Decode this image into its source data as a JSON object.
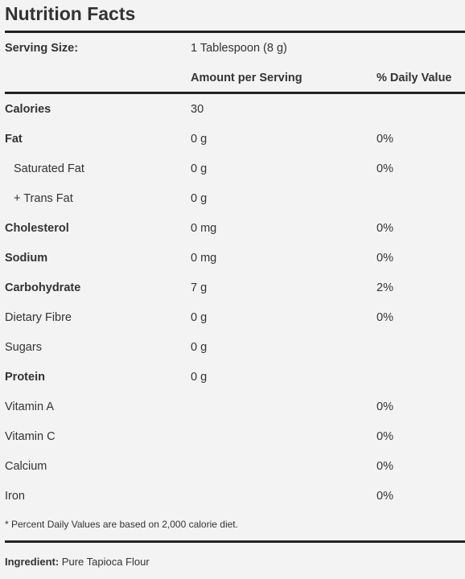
{
  "title": "Nutrition Facts",
  "serving": {
    "label": "Serving Size:",
    "value": "1 Tablespoon (8 g)"
  },
  "columns": {
    "amount": "Amount per Serving",
    "daily_value": "% Daily Value"
  },
  "rows": [
    {
      "name": "Calories",
      "amount": "30",
      "dv": "",
      "bold": true,
      "indent": false
    },
    {
      "name": "Fat",
      "amount": "0 g",
      "dv": "0%",
      "bold": true,
      "indent": false
    },
    {
      "name": "Saturated Fat",
      "amount": "0 g",
      "dv": "0%",
      "bold": false,
      "indent": true
    },
    {
      "name": "+ Trans Fat",
      "amount": "0 g",
      "dv": "",
      "bold": false,
      "indent": true
    },
    {
      "name": "Cholesterol",
      "amount": "0 mg",
      "dv": "0%",
      "bold": true,
      "indent": false
    },
    {
      "name": "Sodium",
      "amount": "0 mg",
      "dv": "0%",
      "bold": true,
      "indent": false
    },
    {
      "name": "Carbohydrate",
      "amount": "7 g",
      "dv": "2%",
      "bold": true,
      "indent": false
    },
    {
      "name": "Dietary Fibre",
      "amount": "0 g",
      "dv": "0%",
      "bold": false,
      "indent": false
    },
    {
      "name": "Sugars",
      "amount": "0 g",
      "dv": "",
      "bold": false,
      "indent": false
    },
    {
      "name": "Protein",
      "amount": "0 g",
      "dv": "",
      "bold": true,
      "indent": false
    },
    {
      "name": "Vitamin A",
      "amount": "",
      "dv": "0%",
      "bold": false,
      "indent": false
    },
    {
      "name": "Vitamin C",
      "amount": "",
      "dv": "0%",
      "bold": false,
      "indent": false
    },
    {
      "name": "Calcium",
      "amount": "",
      "dv": "0%",
      "bold": false,
      "indent": false
    },
    {
      "name": "Iron",
      "amount": "",
      "dv": "0%",
      "bold": false,
      "indent": false
    }
  ],
  "footnote": "* Percent Daily Values are based on 2,000 calorie diet.",
  "ingredient": {
    "label": "Ingredient:",
    "value": "Pure Tapioca Flour"
  }
}
